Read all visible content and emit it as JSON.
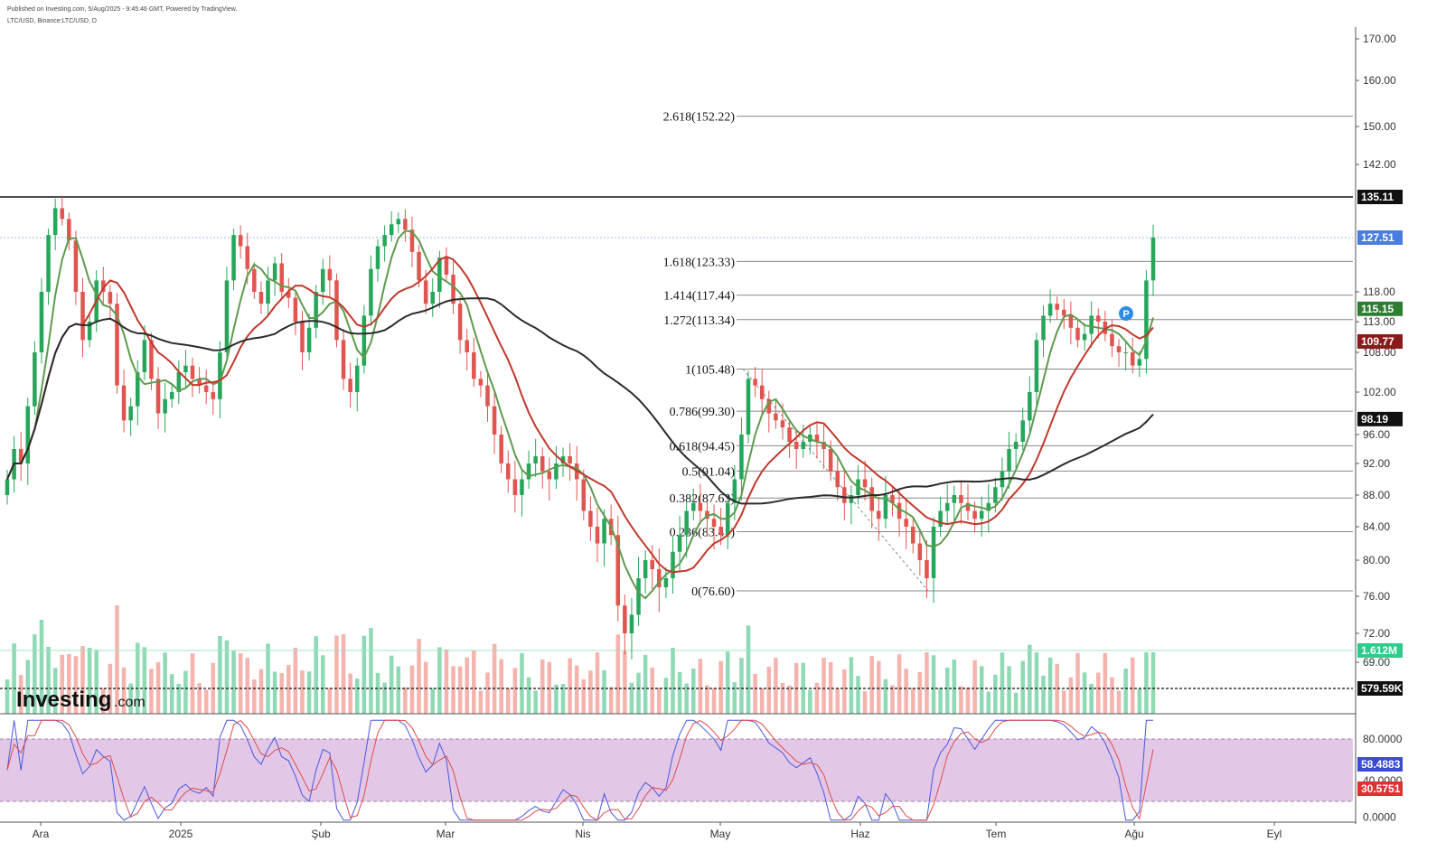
{
  "header": {
    "published": "Published on Investing.com, 5/Aug/2025 - 9:45:46 GMT, Powered by TradingView.",
    "symbol": "LTC/USD, Binance:LTC/USD, D"
  },
  "logo": {
    "text": "Investing",
    "suffix": ".com"
  },
  "colors": {
    "up": "#26a65b",
    "down": "#e0554f",
    "ma_fast": "#5d9b4e",
    "ma_mid": "#c0392b",
    "ma_slow": "#2b2b2b",
    "vol_up": "#8fd9b5",
    "vol_down": "#f5b3ad",
    "stoch_band": "#e2c8e6",
    "stoch_k": "#4a57e0",
    "stoch_d": "#e04a4a",
    "last_price": "#4a7de0",
    "resistance": "#111111"
  },
  "chart_data": {
    "type": "candlestick",
    "symbol": "LTC/USD",
    "timeframe": "D",
    "ylim": [
      62,
      172
    ],
    "y_ticks": [
      "170.00",
      "160.00",
      "150.00",
      "142.00",
      "118.00",
      "113.00",
      "108.00",
      "102.00",
      "96.00",
      "92.00",
      "88.00",
      "84.00",
      "80.00",
      "76.00",
      "72.00",
      "69.00"
    ],
    "x_ticks": [
      "Ara",
      "2025",
      "Şub",
      "Mar",
      "Nis",
      "May",
      "Haz",
      "Tem",
      "Ağu",
      "Eyl"
    ],
    "resistance": {
      "value": 135.11,
      "label": "135.11"
    },
    "last_price": {
      "value": 127.51,
      "label": "127.51"
    },
    "ma_labels": [
      {
        "value": 115.15,
        "label": "115.15",
        "color": "#2e7d32"
      },
      {
        "value": 109.77,
        "label": "109.77",
        "color": "#8b1a1a"
      },
      {
        "value": 98.19,
        "label": "98.19",
        "color": "#111111"
      }
    ],
    "fibonacci": [
      {
        "level": "2.618(152.22)",
        "value": 152.22
      },
      {
        "level": "1.618(123.33)",
        "value": 123.33
      },
      {
        "level": "1.414(117.44)",
        "value": 117.44
      },
      {
        "level": "1.272(113.34)",
        "value": 113.34
      },
      {
        "level": "1(105.48)",
        "value": 105.48
      },
      {
        "level": "0.786(99.30)",
        "value": 99.3
      },
      {
        "level": "0.618(94.45)",
        "value": 94.45
      },
      {
        "level": "0.5(91.04)",
        "value": 91.04
      },
      {
        "level": "0.382(87.63)",
        "value": 87.63
      },
      {
        "level": "0.236(83.41)",
        "value": 83.41
      },
      {
        "level": "0(76.60)",
        "value": 76.6
      }
    ],
    "closes": [
      90,
      94,
      92,
      100,
      108,
      118,
      128,
      133,
      131,
      127,
      118,
      110,
      113,
      120,
      118,
      116,
      103,
      98,
      100,
      105,
      110,
      104,
      99,
      101,
      102,
      105,
      106,
      104,
      103,
      102,
      101,
      108,
      120,
      128,
      126,
      122,
      118,
      116,
      120,
      123,
      118,
      117,
      113,
      108,
      112,
      118,
      122,
      120,
      110,
      104,
      102,
      106,
      114,
      122,
      126,
      128,
      130,
      131,
      129,
      125,
      120,
      116,
      118,
      124,
      121,
      116,
      110,
      108,
      104,
      103,
      100,
      96,
      92,
      90,
      88,
      90,
      92,
      93,
      91,
      90,
      92,
      93,
      92,
      90,
      86,
      84,
      82,
      85,
      83,
      75,
      72,
      74,
      78,
      80,
      79,
      77,
      78,
      81,
      83,
      86,
      87,
      86,
      85,
      84,
      83,
      87,
      90,
      96,
      104,
      103,
      101,
      99,
      98,
      97,
      95,
      94,
      95,
      96,
      95,
      94,
      91,
      89,
      87,
      88,
      90,
      89,
      86,
      85,
      88,
      87,
      85,
      84,
      82,
      80,
      78,
      84,
      86,
      87,
      88,
      87,
      86,
      85,
      86,
      87,
      89,
      91,
      94,
      95,
      98,
      102,
      110,
      114,
      116,
      115,
      114,
      112,
      110,
      111,
      114,
      113,
      111,
      109,
      108,
      108,
      106,
      107,
      120,
      127.51
    ],
    "volume": {
      "current_label": "1.612M",
      "current": 1612000,
      "average_label": "579.59K",
      "average": 579590
    },
    "stochastic": {
      "upper": "80.0000",
      "lower": "20.0000",
      "zero": "0.0000",
      "k_label": "58.4883",
      "d_label": "30.5751",
      "mid_label": "40.0000"
    }
  }
}
